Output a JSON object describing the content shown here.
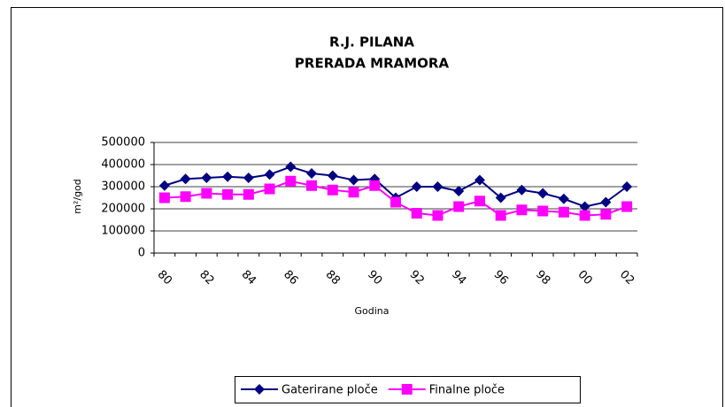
{
  "chart_data": {
    "type": "line",
    "title": [
      "R.J. PILANA",
      "PRERADA MRAMORA"
    ],
    "x_label": "Godina",
    "y_label": "m²/god",
    "categories": [
      "80",
      null,
      "82",
      null,
      "84",
      null,
      "86",
      null,
      "88",
      null,
      "90",
      null,
      "92",
      null,
      "94",
      null,
      "96",
      null,
      "98",
      null,
      "00",
      null,
      "02"
    ],
    "series": [
      {
        "name": "Gaterirane ploče",
        "color": "#000080",
        "marker": "diamond",
        "values": [
          305000,
          335000,
          340000,
          345000,
          340000,
          355000,
          390000,
          360000,
          350000,
          330000,
          335000,
          250000,
          300000,
          300000,
          280000,
          330000,
          250000,
          285000,
          270000,
          245000,
          210000,
          230000,
          300000
        ]
      },
      {
        "name": "Finalne ploče",
        "color": "#ff00ff",
        "marker": "square",
        "values": [
          250000,
          255000,
          270000,
          265000,
          265000,
          290000,
          325000,
          305000,
          285000,
          275000,
          305000,
          230000,
          180000,
          170000,
          210000,
          235000,
          170000,
          195000,
          190000,
          185000,
          170000,
          175000,
          210000
        ]
      }
    ],
    "ylim": [
      0,
      500000
    ],
    "yticks": [
      0,
      100000,
      200000,
      300000,
      400000,
      500000
    ],
    "grid": true,
    "legend": "bottom"
  }
}
